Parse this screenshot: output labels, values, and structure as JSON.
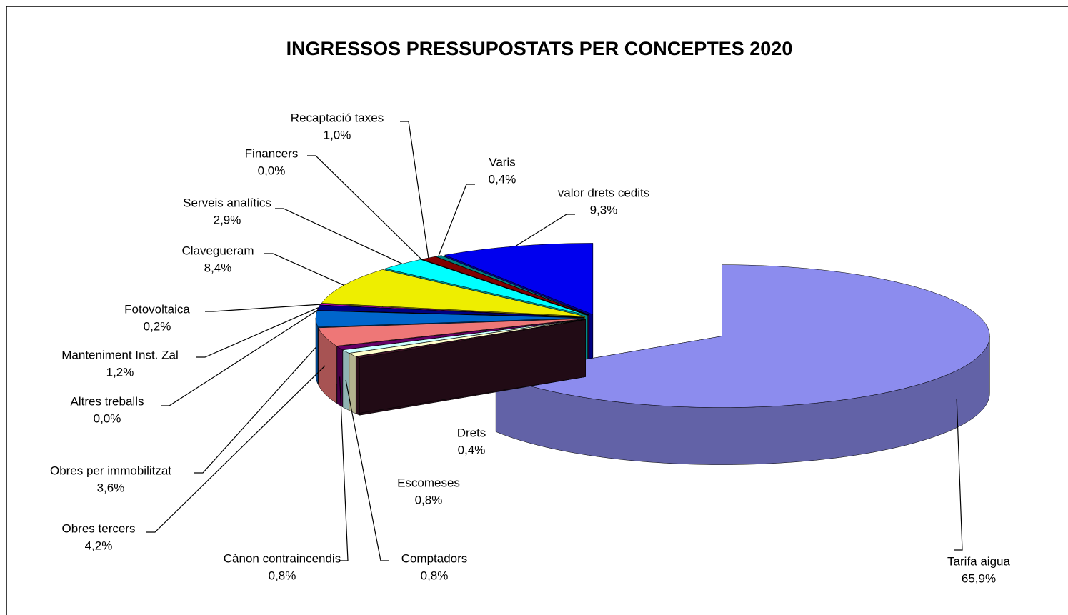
{
  "chart_data": {
    "type": "pie3d",
    "title": "INGRESSOS PRESSUPOSTATS  PER CONCEPTES 2020",
    "categories": [
      "Tarifa  aigua",
      "Drets",
      "Escomeses",
      "Comptadors",
      "Cànon  contraincendis",
      "Obres  tercers",
      "Obres  per  immobilitzat",
      "Altres  treballs",
      "Manteniment  Inst.  Zal",
      "Fotovoltaica",
      "Clavegueram",
      "Serveis  analítics",
      "Financers",
      "Recaptació  taxes",
      "Varis",
      "valor  drets  cedits"
    ],
    "values": [
      65.9,
      0.4,
      0.8,
      0.8,
      0.8,
      4.2,
      3.6,
      0.0,
      1.2,
      0.2,
      8.4,
      2.9,
      0.0,
      1.0,
      0.4,
      9.3
    ],
    "value_labels": [
      "65,9%",
      "0,4%",
      "0,8%",
      "0,8%",
      "0,8%",
      "4,2%",
      "3,6%",
      "0,0%",
      "1,2%",
      "0,2%",
      "8,4%",
      "2,9%",
      "0,0%",
      "1,0%",
      "0,4%",
      "9,3%"
    ],
    "colors": [
      "#8c8cee",
      "#3c1426",
      "#ffffcc",
      "#ccffff",
      "#660066",
      "#ee7777",
      "#0066cc",
      "#ccccff",
      "#000080",
      "#ff00ff",
      "#eeee00",
      "#00ffff",
      "#800080",
      "#800000",
      "#008080",
      "#0000ee"
    ]
  }
}
